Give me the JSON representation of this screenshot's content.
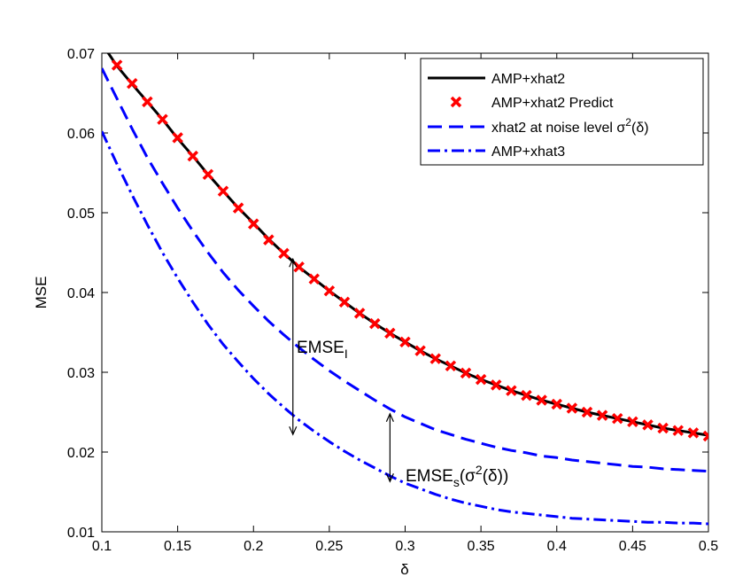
{
  "chart_data": {
    "type": "line",
    "title": "",
    "xlabel": "δ",
    "ylabel": "MSE",
    "xlim": [
      0.1,
      0.5
    ],
    "ylim": [
      0.01,
      0.07
    ],
    "grid": false,
    "legend_position": "top-right",
    "x_ticks": [
      0.1,
      0.15,
      0.2,
      0.25,
      0.3,
      0.35,
      0.4,
      0.45,
      0.5
    ],
    "x_tick_labels": [
      "0.1",
      "0.15",
      "0.2",
      "0.25",
      "0.3",
      "0.35",
      "0.4",
      "0.45",
      "0.5"
    ],
    "y_ticks": [
      0.01,
      0.02,
      0.03,
      0.04,
      0.05,
      0.06,
      0.07
    ],
    "y_tick_labels": [
      "0.01",
      "0.02",
      "0.03",
      "0.04",
      "0.05",
      "0.06",
      "0.07"
    ],
    "series": [
      {
        "name": "AMP+xhat2",
        "style": "solid",
        "color": "#000000",
        "x": [
          0.1,
          0.11,
          0.12,
          0.13,
          0.14,
          0.15,
          0.16,
          0.17,
          0.18,
          0.19,
          0.2,
          0.21,
          0.22,
          0.23,
          0.24,
          0.25,
          0.26,
          0.27,
          0.28,
          0.29,
          0.3,
          0.31,
          0.32,
          0.33,
          0.34,
          0.35,
          0.36,
          0.37,
          0.38,
          0.39,
          0.4,
          0.41,
          0.42,
          0.43,
          0.44,
          0.45,
          0.46,
          0.47,
          0.48,
          0.49,
          0.5
        ],
        "y": [
          0.0712,
          0.0684,
          0.0661,
          0.0639,
          0.0617,
          0.0593,
          0.0571,
          0.0548,
          0.0527,
          0.0506,
          0.0487,
          0.0467,
          0.0449,
          0.0432,
          0.0417,
          0.0402,
          0.0388,
          0.0374,
          0.0361,
          0.0349,
          0.0338,
          0.0327,
          0.0317,
          0.0308,
          0.0299,
          0.0291,
          0.0284,
          0.0277,
          0.0271,
          0.0265,
          0.026,
          0.0255,
          0.025,
          0.0246,
          0.0242,
          0.0238,
          0.0234,
          0.023,
          0.0227,
          0.0224,
          0.0221
        ]
      },
      {
        "name": "AMP+xhat2 Predict",
        "style": "markers",
        "marker": "x",
        "color": "#ff0000",
        "x": [
          0.11,
          0.12,
          0.13,
          0.14,
          0.15,
          0.16,
          0.17,
          0.18,
          0.19,
          0.2,
          0.21,
          0.22,
          0.23,
          0.24,
          0.25,
          0.26,
          0.27,
          0.28,
          0.29,
          0.3,
          0.31,
          0.32,
          0.33,
          0.34,
          0.35,
          0.36,
          0.37,
          0.38,
          0.39,
          0.4,
          0.41,
          0.42,
          0.43,
          0.44,
          0.45,
          0.46,
          0.47,
          0.48,
          0.49,
          0.5
        ],
        "y": [
          0.0685,
          0.0662,
          0.0639,
          0.0617,
          0.0594,
          0.0571,
          0.0548,
          0.0527,
          0.0506,
          0.0486,
          0.0466,
          0.0449,
          0.0432,
          0.0417,
          0.0402,
          0.0388,
          0.0374,
          0.0361,
          0.0349,
          0.0338,
          0.0327,
          0.0317,
          0.0308,
          0.0299,
          0.0291,
          0.0284,
          0.0277,
          0.0271,
          0.0265,
          0.026,
          0.0255,
          0.025,
          0.0246,
          0.0242,
          0.0238,
          0.0234,
          0.023,
          0.0227,
          0.0224,
          0.022
        ]
      },
      {
        "name": "xhat2 at noise level σ²(δ)",
        "style": "dashed",
        "color": "#0000ff",
        "x": [
          0.1,
          0.11,
          0.12,
          0.13,
          0.14,
          0.15,
          0.16,
          0.17,
          0.18,
          0.19,
          0.2,
          0.21,
          0.22,
          0.23,
          0.24,
          0.25,
          0.26,
          0.27,
          0.28,
          0.29,
          0.3,
          0.31,
          0.32,
          0.33,
          0.34,
          0.35,
          0.36,
          0.37,
          0.38,
          0.39,
          0.4,
          0.41,
          0.42,
          0.43,
          0.44,
          0.45,
          0.46,
          0.47,
          0.48,
          0.49,
          0.5
        ],
        "y": [
          0.0681,
          0.0643,
          0.0605,
          0.0569,
          0.0537,
          0.0506,
          0.0477,
          0.045,
          0.0425,
          0.0403,
          0.0383,
          0.0364,
          0.0347,
          0.0331,
          0.0316,
          0.0302,
          0.0289,
          0.0277,
          0.0265,
          0.0254,
          0.0244,
          0.0236,
          0.0228,
          0.0222,
          0.0216,
          0.0211,
          0.0206,
          0.0202,
          0.0199,
          0.0195,
          0.0193,
          0.019,
          0.0188,
          0.0186,
          0.0184,
          0.0182,
          0.0181,
          0.0179,
          0.0178,
          0.0177,
          0.0176
        ]
      },
      {
        "name": "AMP+xhat3",
        "style": "dashdot",
        "color": "#0000ff",
        "x": [
          0.1,
          0.11,
          0.12,
          0.13,
          0.14,
          0.15,
          0.16,
          0.17,
          0.18,
          0.19,
          0.2,
          0.21,
          0.22,
          0.23,
          0.24,
          0.25,
          0.26,
          0.27,
          0.28,
          0.29,
          0.3,
          0.31,
          0.32,
          0.33,
          0.34,
          0.35,
          0.36,
          0.37,
          0.38,
          0.39,
          0.4,
          0.41,
          0.42,
          0.43,
          0.44,
          0.45,
          0.46,
          0.47,
          0.48,
          0.49,
          0.5
        ],
        "y": [
          0.0602,
          0.0561,
          0.0522,
          0.0485,
          0.045,
          0.0418,
          0.0388,
          0.036,
          0.0335,
          0.0313,
          0.0292,
          0.0273,
          0.0256,
          0.024,
          0.0226,
          0.0213,
          0.0201,
          0.019,
          0.018,
          0.017,
          0.0161,
          0.0154,
          0.0147,
          0.0141,
          0.0136,
          0.0132,
          0.0128,
          0.0125,
          0.0123,
          0.0121,
          0.0119,
          0.0117,
          0.0116,
          0.0115,
          0.0114,
          0.0113,
          0.0112,
          0.0112,
          0.0111,
          0.0111,
          0.011
        ]
      }
    ],
    "annotations": [
      {
        "id": "emse-i",
        "label": "EMSE",
        "subscript": "I",
        "arrow_x": 0.226,
        "arrow_y_from": 0.0442,
        "arrow_y_to": 0.0222,
        "text_x": 0.23,
        "text_y": 0.0315
      },
      {
        "id": "emse-s",
        "label": "EMSE",
        "subscript": "s",
        "suffix_open": "(σ",
        "suffix_sup": "2",
        "suffix_close": "(δ))",
        "arrow_x": 0.29,
        "arrow_y_from": 0.0248,
        "arrow_y_to": 0.0163,
        "text_x": 0.3,
        "text_y": 0.0175
      }
    ],
    "legend": {
      "entries": [
        {
          "label": "AMP+xhat2"
        },
        {
          "label": "AMP+xhat2 Predict"
        },
        {
          "label_pre": "xhat2 at noise level σ",
          "label_sup": "2",
          "label_post": "(δ)"
        },
        {
          "label": "AMP+xhat3"
        }
      ]
    }
  }
}
